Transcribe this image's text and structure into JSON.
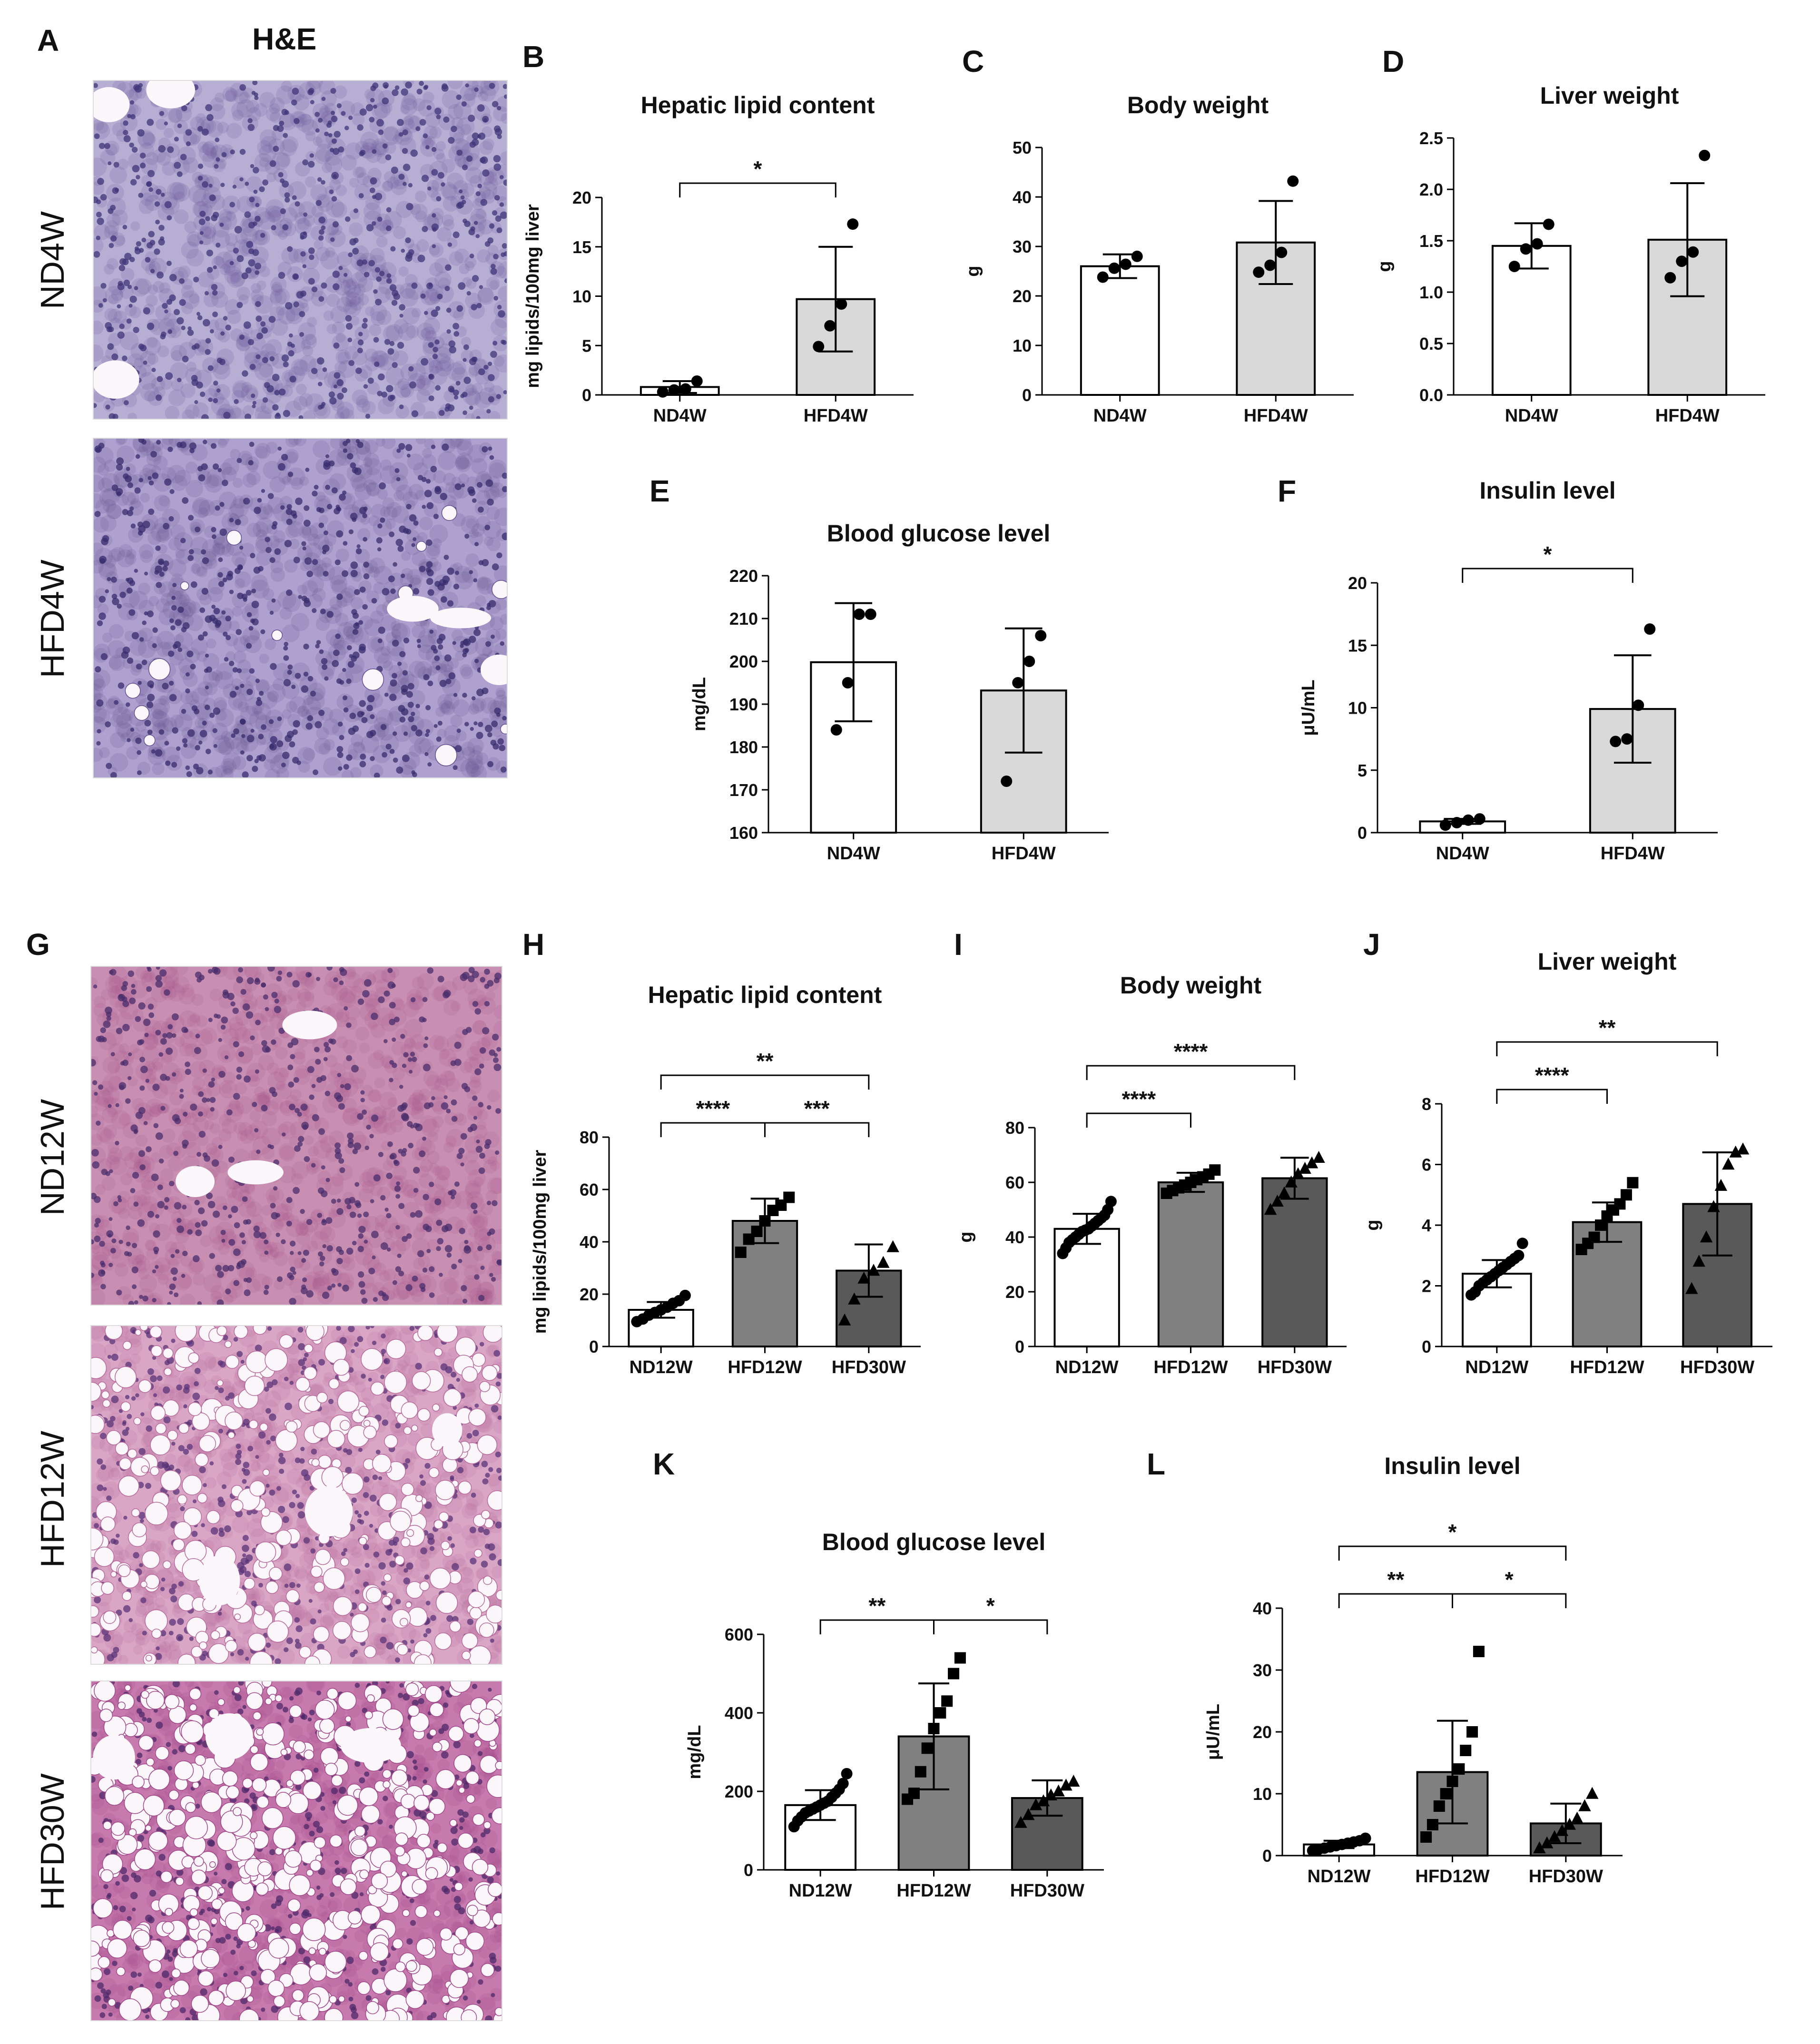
{
  "figure": {
    "he_title": "H&E",
    "panel_letters": {
      "A": "A",
      "B": "B",
      "C": "C",
      "D": "D",
      "E": "E",
      "F": "F",
      "G": "G",
      "H": "H",
      "I": "I",
      "J": "J",
      "K": "K",
      "L": "L"
    },
    "micrographs": [
      {
        "label": "ND4W",
        "stain": "H&E",
        "colors": {
          "base": "#b7aed3",
          "cell": "#6a5a9a",
          "nucleus": "#3f3478"
        },
        "lipid_level": 0.0
      },
      {
        "label": "HFD4W",
        "stain": "H&E",
        "colors": {
          "base": "#aea1cf",
          "cell": "#62518f",
          "nucleus": "#372c6e"
        },
        "lipid_level": 0.02
      },
      {
        "label": "ND12W",
        "stain": "H&E",
        "colors": {
          "base": "#c98fb2",
          "cell": "#a85a8c",
          "nucleus": "#4a2e6c"
        },
        "lipid_level": 0.0
      },
      {
        "label": "HFD12W",
        "stain": "H&E",
        "colors": {
          "base": "#d9a6c6",
          "cell": "#b86a9c",
          "nucleus": "#5a3478"
        },
        "lipid_level": 0.5
      },
      {
        "label": "HFD30W",
        "stain": "H&E",
        "colors": {
          "base": "#c77aad",
          "cell": "#a1478a",
          "nucleus": "#4d2a6a"
        },
        "lipid_level": 0.75
      }
    ]
  },
  "chart_data": [
    {
      "panel": "B",
      "type": "bar",
      "title": "Hepatic lipid content",
      "ylabel": "mg lipids/100mg liver",
      "ylim": [
        0,
        20
      ],
      "yticks": [
        0,
        5,
        10,
        15,
        20
      ],
      "categories": [
        "ND4W",
        "HFD4W"
      ],
      "bars": [
        {
          "mean": 0.8,
          "sd": 0.6,
          "fill": "#ffffff",
          "points": [
            0.3,
            0.5,
            0.6,
            1.4
          ],
          "marker": "circle"
        },
        {
          "mean": 9.7,
          "sd": 5.3,
          "fill": "#d9d9d9",
          "points": [
            4.9,
            7.0,
            9.2,
            17.3
          ],
          "marker": "circle"
        }
      ],
      "significance": [
        {
          "from": 0,
          "to": 1,
          "label": "*",
          "level": 0
        }
      ]
    },
    {
      "panel": "C",
      "type": "bar",
      "title": "Body weight",
      "ylabel": "g",
      "ylim": [
        0,
        50
      ],
      "yticks": [
        0,
        10,
        20,
        30,
        40,
        50
      ],
      "categories": [
        "ND4W",
        "HFD4W"
      ],
      "bars": [
        {
          "mean": 26.0,
          "sd": 2.4,
          "fill": "#ffffff",
          "points": [
            23.8,
            25.6,
            26.4,
            28.0
          ],
          "marker": "circle"
        },
        {
          "mean": 30.8,
          "sd": 8.4,
          "fill": "#d9d9d9",
          "points": [
            24.8,
            26.2,
            28.8,
            43.2
          ],
          "marker": "circle"
        }
      ],
      "significance": []
    },
    {
      "panel": "D",
      "type": "bar",
      "title": "Liver weight",
      "ylabel": "g",
      "ylim": [
        0,
        2.5
      ],
      "yticks": [
        "0.0",
        "0.5",
        "1.0",
        "1.5",
        "2.0",
        "2.5"
      ],
      "categories": [
        "ND4W",
        "HFD4W"
      ],
      "bars": [
        {
          "mean": 1.45,
          "sd": 0.22,
          "fill": "#ffffff",
          "points": [
            1.25,
            1.42,
            1.47,
            1.66
          ],
          "marker": "circle"
        },
        {
          "mean": 1.51,
          "sd": 0.55,
          "fill": "#d9d9d9",
          "points": [
            1.14,
            1.3,
            1.39,
            2.33
          ],
          "marker": "circle"
        }
      ],
      "significance": []
    },
    {
      "panel": "E",
      "type": "bar",
      "title": "Blood glucose level",
      "ylabel": "mg/dL",
      "ylim": [
        160,
        220
      ],
      "yticks": [
        160,
        170,
        180,
        190,
        200,
        210,
        220
      ],
      "categories": [
        "ND4W",
        "HFD4W"
      ],
      "bars": [
        {
          "mean": 199.8,
          "sd": 13.8,
          "fill": "#ffffff",
          "points": [
            184.0,
            195.0,
            211.0,
            211.0
          ],
          "marker": "circle"
        },
        {
          "mean": 193.2,
          "sd": 14.5,
          "fill": "#d9d9d9",
          "points": [
            172.0,
            195.0,
            200.0,
            206.0
          ],
          "marker": "circle"
        }
      ],
      "significance": []
    },
    {
      "panel": "F",
      "type": "bar",
      "title": "Insulin level",
      "ylabel": "μU/mL",
      "ylim": [
        0,
        20
      ],
      "yticks": [
        0,
        5,
        10,
        15,
        20
      ],
      "categories": [
        "ND4W",
        "HFD4W"
      ],
      "bars": [
        {
          "mean": 0.9,
          "sd": 0.2,
          "fill": "#ffffff",
          "points": [
            0.6,
            0.8,
            1.0,
            1.1
          ],
          "marker": "circle"
        },
        {
          "mean": 9.9,
          "sd": 4.3,
          "fill": "#d9d9d9",
          "points": [
            7.3,
            7.5,
            10.2,
            16.3
          ],
          "marker": "circle"
        }
      ],
      "significance": [
        {
          "from": 0,
          "to": 1,
          "label": "*",
          "level": 0
        }
      ]
    },
    {
      "panel": "H",
      "type": "bar",
      "title": "Hepatic lipid content",
      "ylabel": "mg lipids/100mg liver",
      "ylim": [
        0,
        80
      ],
      "yticks": [
        0,
        20,
        40,
        60,
        80
      ],
      "categories": [
        "ND12W",
        "HFD12W",
        "HFD30W"
      ],
      "bars": [
        {
          "mean": 14.0,
          "sd": 3.0,
          "fill": "#ffffff",
          "points": [
            9.5,
            10.5,
            12.0,
            13.0,
            14.0,
            15.0,
            16.5,
            17.5,
            19.5
          ],
          "marker": "circle"
        },
        {
          "mean": 48.0,
          "sd": 8.5,
          "fill": "#808080",
          "points": [
            36.0,
            41.0,
            44.0,
            48.0,
            52.0,
            54.0,
            57.0
          ],
          "marker": "square"
        },
        {
          "mean": 29.0,
          "sd": 10.0,
          "fill": "#595959",
          "points": [
            10.0,
            18.0,
            26.0,
            29.0,
            32.0,
            38.0
          ],
          "marker": "triangle"
        }
      ],
      "significance": [
        {
          "from": 0,
          "to": 1,
          "label": "****",
          "level": 0
        },
        {
          "from": 1,
          "to": 2,
          "label": "***",
          "level": 0
        },
        {
          "from": 0,
          "to": 2,
          "label": "**",
          "level": 1
        }
      ]
    },
    {
      "panel": "I",
      "type": "bar",
      "title": "Body weight",
      "ylabel": "g",
      "ylim": [
        0,
        80
      ],
      "yticks": [
        0,
        20,
        40,
        60,
        80
      ],
      "categories": [
        "ND12W",
        "HFD12W",
        "HFD30W"
      ],
      "bars": [
        {
          "mean": 43.0,
          "sd": 5.5,
          "fill": "#ffffff",
          "points": [
            34.0,
            36.0,
            38.0,
            39.0,
            40.0,
            41.0,
            42.0,
            42.5,
            43.0,
            44.0,
            45.0,
            46.0,
            47.0,
            48.0,
            50.0,
            53.0
          ],
          "marker": "circle"
        },
        {
          "mean": 60.0,
          "sd": 3.5,
          "fill": "#808080",
          "points": [
            56.0,
            57.0,
            58.0,
            59.0,
            60.0,
            61.0,
            62.0,
            63.0,
            64.5
          ],
          "marker": "square"
        },
        {
          "mean": 61.5,
          "sd": 7.5,
          "fill": "#595959",
          "points": [
            50.0,
            53.0,
            56.0,
            60.0,
            63.0,
            65.0,
            67.0,
            69.0
          ],
          "marker": "triangle"
        }
      ],
      "significance": [
        {
          "from": 0,
          "to": 1,
          "label": "****",
          "level": 0
        },
        {
          "from": 0,
          "to": 2,
          "label": "****",
          "level": 1
        }
      ]
    },
    {
      "panel": "J",
      "type": "bar",
      "title": "Liver weight",
      "ylabel": "g",
      "ylim": [
        0,
        8
      ],
      "yticks": [
        0,
        2,
        4,
        6,
        8
      ],
      "categories": [
        "ND12W",
        "HFD12W",
        "HFD30W"
      ],
      "bars": [
        {
          "mean": 2.4,
          "sd": 0.45,
          "fill": "#ffffff",
          "points": [
            1.7,
            1.8,
            2.0,
            2.1,
            2.2,
            2.3,
            2.4,
            2.5,
            2.6,
            2.7,
            2.8,
            2.9,
            3.0,
            3.4
          ],
          "marker": "circle"
        },
        {
          "mean": 4.1,
          "sd": 0.65,
          "fill": "#808080",
          "points": [
            3.2,
            3.4,
            3.6,
            4.0,
            4.3,
            4.5,
            4.7,
            5.0,
            5.4
          ],
          "marker": "square"
        },
        {
          "mean": 4.7,
          "sd": 1.7,
          "fill": "#595959",
          "points": [
            1.9,
            2.8,
            3.6,
            4.6,
            5.3,
            6.0,
            6.4,
            6.5
          ],
          "marker": "triangle"
        }
      ],
      "significance": [
        {
          "from": 0,
          "to": 1,
          "label": "****",
          "level": 0
        },
        {
          "from": 0,
          "to": 2,
          "label": "**",
          "level": 1
        }
      ]
    },
    {
      "panel": "K",
      "type": "bar",
      "title": "Blood glucose level",
      "ylabel": "mg/dL",
      "ylim": [
        0,
        600
      ],
      "yticks": [
        0,
        200,
        400,
        600
      ],
      "categories": [
        "ND12W",
        "HFD12W",
        "HFD30W"
      ],
      "bars": [
        {
          "mean": 165.0,
          "sd": 38.0,
          "fill": "#ffffff",
          "points": [
            110.0,
            125.0,
            135.0,
            145.0,
            150.0,
            155.0,
            160.0,
            165.0,
            170.0,
            175.0,
            185.0,
            195.0,
            205.0,
            220.0,
            245.0
          ],
          "marker": "circle"
        },
        {
          "mean": 340.0,
          "sd": 135.0,
          "fill": "#808080",
          "points": [
            180.0,
            195.0,
            250.0,
            310.0,
            360.0,
            400.0,
            430.0,
            500.0,
            540.0
          ],
          "marker": "square"
        },
        {
          "mean": 183.0,
          "sd": 45.0,
          "fill": "#595959",
          "points": [
            120.0,
            140.0,
            165.0,
            175.0,
            190.0,
            200.0,
            215.0,
            225.0
          ],
          "marker": "triangle"
        }
      ],
      "significance": [
        {
          "from": 0,
          "to": 1,
          "label": "**",
          "level": 0
        },
        {
          "from": 1,
          "to": 2,
          "label": "*",
          "level": 0
        }
      ]
    },
    {
      "panel": "L",
      "type": "bar",
      "title": "Insulin level",
      "ylabel": "μU/mL",
      "ylim": [
        0,
        40
      ],
      "yticks": [
        0,
        10,
        20,
        30,
        40
      ],
      "categories": [
        "ND12W",
        "HFD12W",
        "HFD30W"
      ],
      "bars": [
        {
          "mean": 1.8,
          "sd": 0.6,
          "fill": "#ffffff",
          "points": [
            0.8,
            1.0,
            1.2,
            1.4,
            1.6,
            1.8,
            2.0,
            2.2,
            2.4,
            2.8
          ],
          "marker": "circle"
        },
        {
          "mean": 13.5,
          "sd": 8.3,
          "fill": "#808080",
          "points": [
            3.0,
            5.0,
            8.0,
            10.0,
            12.0,
            14.0,
            17.0,
            20.0,
            33.0
          ],
          "marker": "square"
        },
        {
          "mean": 5.2,
          "sd": 3.2,
          "fill": "#595959",
          "points": [
            1.2,
            2.0,
            3.0,
            4.0,
            5.0,
            6.0,
            8.0,
            10.0
          ],
          "marker": "triangle"
        }
      ],
      "significance": [
        {
          "from": 0,
          "to": 1,
          "label": "**",
          "level": 0
        },
        {
          "from": 1,
          "to": 2,
          "label": "*",
          "level": 0
        },
        {
          "from": 0,
          "to": 2,
          "label": "*",
          "level": 1
        }
      ]
    }
  ]
}
